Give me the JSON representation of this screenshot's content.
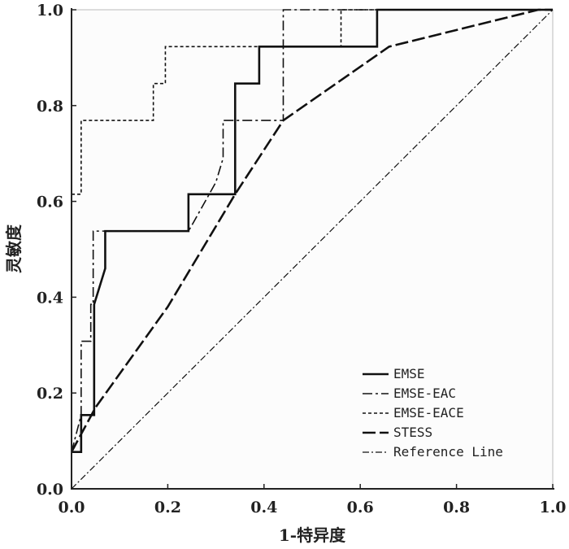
{
  "chart_data": {
    "type": "line",
    "title": "",
    "xlabel": "1-特异度",
    "ylabel": "灵敏度",
    "xlim": [
      0,
      1
    ],
    "ylim": [
      0,
      1
    ],
    "xticks": [
      "0.0",
      "0.2",
      "0.4",
      "0.6",
      "0.8",
      "1.0"
    ],
    "yticks": [
      "0.0",
      "0.2",
      "0.4",
      "0.6",
      "0.8",
      "1.0"
    ],
    "legend_position": "bottom-right",
    "series": [
      {
        "name": "EMSE",
        "style": "solid",
        "width": 2.6,
        "points": [
          [
            0,
            0.077
          ],
          [
            0.02,
            0.077
          ],
          [
            0.02,
            0.154
          ],
          [
            0.047,
            0.154
          ],
          [
            0.047,
            0.385
          ],
          [
            0.07,
            0.46
          ],
          [
            0.07,
            0.538
          ],
          [
            0.243,
            0.538
          ],
          [
            0.243,
            0.615
          ],
          [
            0.34,
            0.615
          ],
          [
            0.34,
            0.846
          ],
          [
            0.39,
            0.846
          ],
          [
            0.39,
            0.923
          ],
          [
            0.635,
            0.923
          ],
          [
            0.635,
            1
          ],
          [
            1,
            1
          ]
        ]
      },
      {
        "name": "EMSE-EAC",
        "style": "12,4,3,4",
        "width": 1.6,
        "points": [
          [
            0,
            0.077
          ],
          [
            0.02,
            0.154
          ],
          [
            0.02,
            0.308
          ],
          [
            0.04,
            0.308
          ],
          [
            0.04,
            0.385
          ],
          [
            0.045,
            0.385
          ],
          [
            0.045,
            0.538
          ],
          [
            0.07,
            0.538
          ],
          [
            0.243,
            0.538
          ],
          [
            0.25,
            0.55
          ],
          [
            0.3,
            0.64
          ],
          [
            0.315,
            0.69
          ],
          [
            0.315,
            0.769
          ],
          [
            0.44,
            0.769
          ],
          [
            0.44,
            1
          ],
          [
            1,
            1
          ]
        ]
      },
      {
        "name": "EMSE-EACE",
        "style": "4,3",
        "width": 1.6,
        "points": [
          [
            0,
            0.615
          ],
          [
            0.02,
            0.615
          ],
          [
            0.02,
            0.769
          ],
          [
            0.17,
            0.769
          ],
          [
            0.17,
            0.846
          ],
          [
            0.195,
            0.846
          ],
          [
            0.195,
            0.923
          ],
          [
            0.56,
            0.923
          ],
          [
            0.56,
            1
          ],
          [
            1,
            1
          ]
        ]
      },
      {
        "name": "STESS",
        "style": "16,5",
        "width": 2.6,
        "points": [
          [
            0,
            0.077
          ],
          [
            0.05,
            0.17
          ],
          [
            0.2,
            0.38
          ],
          [
            0.34,
            0.615
          ],
          [
            0.44,
            0.769
          ],
          [
            0.66,
            0.923
          ],
          [
            0.97,
            1
          ],
          [
            1,
            1
          ]
        ]
      },
      {
        "name": "Reference Line",
        "style": "8,3,2,3",
        "width": 1.2,
        "points": [
          [
            0,
            0
          ],
          [
            1,
            1
          ]
        ]
      }
    ]
  }
}
